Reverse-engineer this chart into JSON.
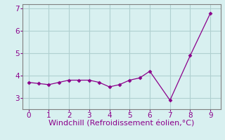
{
  "x": [
    0,
    0.5,
    1,
    1.5,
    2,
    2.5,
    3,
    3.5,
    4,
    4.5,
    5,
    5.5,
    6,
    7,
    8,
    9
  ],
  "y": [
    3.7,
    3.65,
    3.6,
    3.7,
    3.8,
    3.8,
    3.8,
    3.7,
    3.5,
    3.6,
    3.8,
    3.9,
    4.2,
    2.9,
    4.9,
    6.8
  ],
  "xlabel": "Windchill (Refroidissement éolien,°C)",
  "ylim": [
    2.5,
    7.2
  ],
  "xlim": [
    -0.3,
    9.5
  ],
  "xticks": [
    0,
    1,
    2,
    3,
    4,
    5,
    6,
    7,
    8,
    9
  ],
  "yticks": [
    3,
    4,
    5,
    6,
    7
  ],
  "line_color": "#8B008B",
  "marker_color": "#8B008B",
  "bg_color": "#d8f0f0",
  "grid_color": "#b0d0d0",
  "axis_color": "#808080",
  "xlabel_fontsize": 8,
  "tick_fontsize": 7.5
}
